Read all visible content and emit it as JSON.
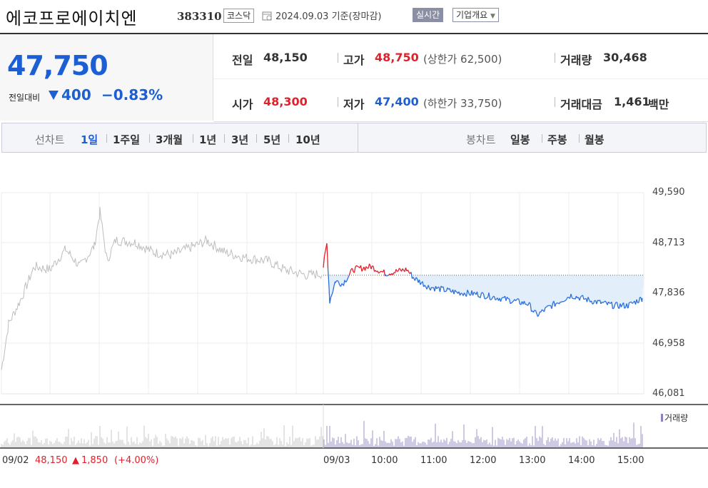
{
  "header": {
    "name": "에코프로에이치엔",
    "code": "383310",
    "market": "코스닥",
    "date": "2024.09.03  기준(장마감)",
    "realtime_label": "실시간",
    "company_label": "기업개요"
  },
  "price": {
    "current": "47,750",
    "diff_label": "전일대비",
    "diff": "400",
    "diff_pct": "−0.83%",
    "direction": "down"
  },
  "stats": {
    "prev_label": "전일",
    "prev": "48,150",
    "high_label": "고가",
    "high": "48,750",
    "upper_limit": "(상한가 62,500)",
    "volume_label": "거래량",
    "volume": "30,468",
    "open_label": "시가",
    "open": "48,300",
    "low_label": "저가",
    "low": "47,400",
    "lower_limit": "(하한가 33,750)",
    "amount_label": "거래대금",
    "amount": "1,461",
    "amount_unit": "백만"
  },
  "tabs": {
    "line_label": "선차트",
    "periods": [
      "1일",
      "1주일",
      "3개월",
      "1년",
      "3년",
      "5년",
      "10년"
    ],
    "active_period": "1일",
    "candle_label": "봉차트",
    "candles": [
      "일봉",
      "주봉",
      "월봉"
    ]
  },
  "chart": {
    "y_ticks": [
      "49,590",
      "48,713",
      "47,836",
      "46,958",
      "46,081"
    ],
    "x_ticks": [
      "09/02",
      "09/03",
      "10:00",
      "11:00",
      "12:00",
      "13:00",
      "14:00",
      "15:00"
    ],
    "prev_day_summary": "48,150",
    "prev_day_change": "1,850",
    "prev_day_pct": "(+4.00%)",
    "volume_legend": "거래량",
    "prev_close": 48150,
    "y_min": 46081,
    "y_max": 49590,
    "colors": {
      "up": "#e0212b",
      "down": "#2a6fdb",
      "prev": "#bdbdbd",
      "fill": "#e3eefb",
      "volume": "#a093c9",
      "volume_prev": "#c9c9c9"
    }
  }
}
